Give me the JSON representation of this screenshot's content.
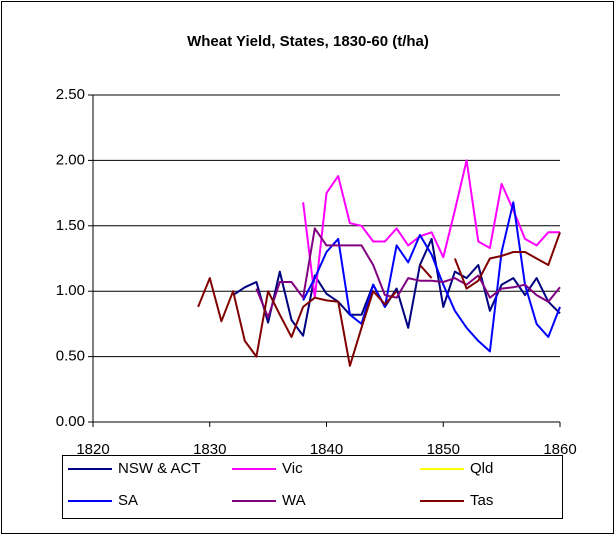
{
  "chart_data": {
    "type": "line",
    "title": "Wheat Yield, States, 1830-60 (t/ha)",
    "x": [
      1829,
      1830,
      1831,
      1832,
      1833,
      1834,
      1835,
      1836,
      1837,
      1838,
      1839,
      1840,
      1841,
      1842,
      1843,
      1844,
      1845,
      1846,
      1847,
      1848,
      1849,
      1850,
      1851,
      1852,
      1853,
      1854,
      1855,
      1856,
      1857,
      1858,
      1859,
      1860
    ],
    "series": [
      {
        "name": "NSW & ACT",
        "color": "#000080",
        "values": [
          null,
          null,
          null,
          0.97,
          1.03,
          1.07,
          0.76,
          1.15,
          0.78,
          0.66,
          1.12,
          0.98,
          0.92,
          0.82,
          0.82,
          1.05,
          0.88,
          1.02,
          0.72,
          1.2,
          1.4,
          0.88,
          1.15,
          1.1,
          1.2,
          0.85,
          1.05,
          1.1,
          0.97,
          1.1,
          0.92,
          0.83
        ]
      },
      {
        "name": "Vic",
        "color": "#ff00ff",
        "values": [
          null,
          null,
          null,
          null,
          null,
          null,
          null,
          null,
          null,
          1.68,
          0.95,
          1.75,
          1.88,
          1.52,
          1.5,
          1.38,
          1.38,
          1.48,
          1.35,
          1.42,
          1.45,
          1.26,
          1.62,
          2.0,
          1.38,
          1.33,
          1.82,
          1.62,
          1.4,
          1.35,
          1.45,
          1.45
        ]
      },
      {
        "name": "Qld",
        "color": "#ffff00",
        "values": [
          null,
          null,
          null,
          null,
          null,
          null,
          null,
          null,
          null,
          null,
          null,
          null,
          null,
          null,
          null,
          null,
          null,
          null,
          null,
          null,
          null,
          null,
          null,
          null,
          null,
          null,
          null,
          null,
          null,
          null,
          null,
          null
        ]
      },
      {
        "name": "SA",
        "color": "#0000ff",
        "values": [
          null,
          null,
          null,
          null,
          null,
          null,
          null,
          null,
          null,
          0.93,
          1.1,
          1.3,
          1.4,
          0.82,
          0.75,
          1.05,
          0.88,
          1.35,
          1.22,
          1.43,
          1.28,
          1.05,
          0.85,
          0.72,
          0.62,
          0.54,
          1.3,
          1.68,
          1.05,
          0.75,
          0.65,
          0.88
        ]
      },
      {
        "name": "WA",
        "color": "#800080",
        "values": [
          null,
          null,
          null,
          null,
          null,
          1.02,
          0.8,
          1.07,
          1.07,
          0.95,
          1.48,
          1.35,
          1.35,
          1.35,
          1.35,
          1.2,
          0.97,
          0.95,
          1.1,
          1.08,
          1.08,
          1.07,
          1.1,
          1.05,
          1.12,
          0.95,
          1.02,
          1.03,
          1.05,
          0.97,
          0.92,
          1.03
        ]
      },
      {
        "name": "Tas",
        "color": "#800000",
        "values": [
          0.88,
          1.1,
          0.77,
          1.0,
          0.62,
          0.5,
          1.0,
          0.82,
          0.65,
          0.88,
          0.95,
          0.93,
          0.92,
          0.43,
          0.72,
          1.0,
          0.9,
          1.0,
          null,
          1.2,
          1.1,
          null,
          1.25,
          1.02,
          1.08,
          1.25,
          1.27,
          1.3,
          1.3,
          1.25,
          1.2,
          1.45
        ]
      }
    ],
    "xlim": [
      1820,
      1860
    ],
    "xticks": [
      1820,
      1830,
      1840,
      1850,
      1860
    ],
    "ylim": [
      0,
      2.5
    ],
    "yticks": [
      {
        "value": 0,
        "label": "0.00"
      },
      {
        "value": 0.5,
        "label": "0.50"
      },
      {
        "value": 1,
        "label": "1.00"
      },
      {
        "value": 1.5,
        "label": "1.50"
      },
      {
        "value": 2,
        "label": "2.00"
      },
      {
        "value": 2.5,
        "label": "2.50"
      }
    ],
    "grid": true,
    "legend": "bottom"
  }
}
